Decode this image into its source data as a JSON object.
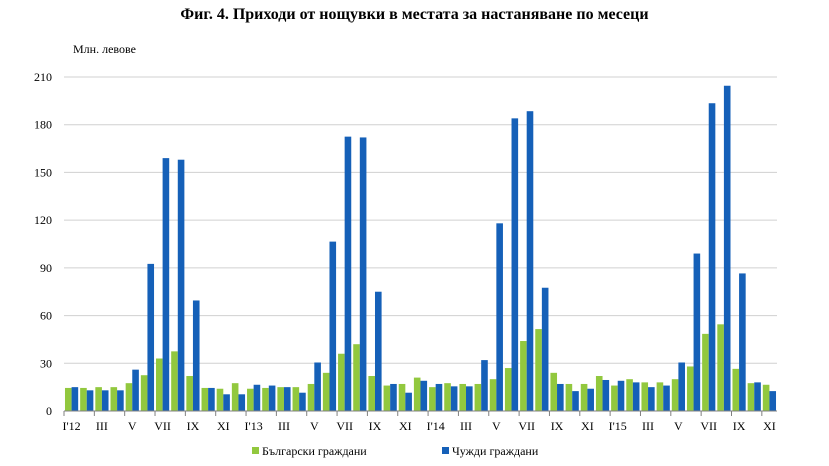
{
  "chart_data": {
    "type": "bar",
    "title": "Фиг. 4. Приходи от нощувки в местата за настаняване по месеци",
    "ylabel": "Млн. левове",
    "xlabel": "",
    "ylim": [
      0,
      210
    ],
    "yticks": [
      0,
      30,
      60,
      90,
      120,
      150,
      180,
      210
    ],
    "grid": true,
    "legend_position": "bottom",
    "categories": [
      "I'12",
      "II",
      "III",
      "IV",
      "V",
      "VI",
      "VII",
      "VIII",
      "IX",
      "X",
      "XI",
      "XII",
      "I'13",
      "II",
      "III",
      "IV",
      "V",
      "VI",
      "VII",
      "VIII",
      "IX",
      "X",
      "XI",
      "XII",
      "I'14",
      "II",
      "III",
      "IV",
      "V",
      "VI",
      "VII",
      "VIII",
      "IX",
      "X",
      "XI",
      "XII",
      "I'15",
      "II",
      "III",
      "IV",
      "V",
      "VI",
      "VII",
      "VIII",
      "IX",
      "X",
      "XI"
    ],
    "shown_labels": [
      "I'12",
      "III",
      "V",
      "VII",
      "IX",
      "XI",
      "I'13",
      "III",
      "V",
      "VII",
      "IX",
      "XI",
      "I'14",
      "III",
      "V",
      "VII",
      "IX",
      "XI",
      "I'15",
      "III",
      "V",
      "VII",
      "IX",
      "XI"
    ],
    "series": [
      {
        "name": "Български граждани",
        "color": "#92c83e",
        "values": [
          14.5,
          14.5,
          15,
          15,
          17.5,
          22.5,
          33,
          37.5,
          22,
          14.5,
          14,
          17.5,
          14,
          14.5,
          15,
          15,
          17,
          24,
          36,
          42,
          22,
          16,
          17,
          21,
          15,
          17.5,
          17,
          17,
          20,
          27,
          44,
          51.5,
          24,
          17,
          17,
          22,
          16,
          20,
          18,
          18,
          20,
          28,
          48.5,
          54.5,
          26.5,
          17.5,
          16.5
        ]
      },
      {
        "name": "Чужди граждани",
        "color": "#1560b8",
        "values": [
          15,
          13,
          13,
          13,
          26,
          92.5,
          159,
          158,
          69.5,
          14.5,
          10.5,
          10.5,
          16.5,
          16,
          15,
          11.5,
          30.5,
          106.5,
          172.5,
          172,
          75,
          17,
          11.5,
          19,
          17,
          15.5,
          15.5,
          32,
          118,
          184,
          188.5,
          77.5,
          17,
          12.5,
          14,
          19.5,
          19,
          18,
          15,
          16,
          30.5,
          99,
          193.5,
          204.5,
          86.5,
          18,
          12.5
        ]
      }
    ]
  }
}
